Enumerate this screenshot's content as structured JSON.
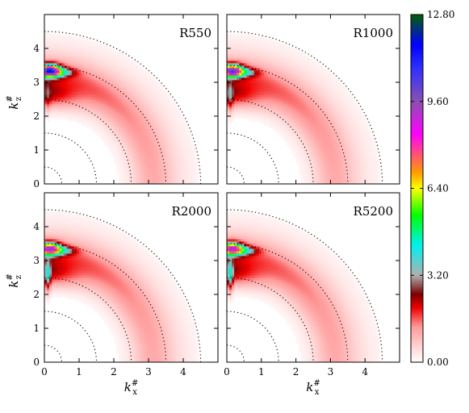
{
  "chart_data": [
    {
      "type": "heatmap",
      "title": "R550",
      "xlabel": "",
      "ylabel": "k_z^#",
      "xlim": [
        0,
        5
      ],
      "ylim": [
        0,
        5
      ],
      "xticks": [],
      "yticks": [
        "0",
        "1",
        "2",
        "3",
        "4"
      ],
      "peak": {
        "kx": 0.15,
        "kz": 3.35,
        "value": 12.3
      },
      "dotted_circle_radii": [
        0.5,
        1.5,
        2.5,
        3.5,
        4.5
      ]
    },
    {
      "type": "heatmap",
      "title": "R1000",
      "xlabel": "",
      "ylabel": "",
      "xlim": [
        0,
        5
      ],
      "ylim": [
        0,
        5
      ],
      "xticks": [],
      "yticks": [],
      "peak": {
        "kx": 0.15,
        "kz": 3.35,
        "value": 11.0
      },
      "dotted_circle_radii": [
        0.5,
        1.5,
        2.5,
        3.5,
        4.5
      ]
    },
    {
      "type": "heatmap",
      "title": "R2000",
      "xlabel": "k_x^#",
      "ylabel": "k_z^#",
      "xlim": [
        0,
        5
      ],
      "ylim": [
        0,
        5
      ],
      "xticks": [
        "0",
        "1",
        "2",
        "3",
        "4"
      ],
      "yticks": [
        "0",
        "1",
        "2",
        "3",
        "4"
      ],
      "peak": {
        "kx": 0.15,
        "kz": 3.35,
        "value": 10.0
      },
      "dotted_circle_radii": [
        0.5,
        1.5,
        2.5,
        3.5,
        4.5
      ]
    },
    {
      "type": "heatmap",
      "title": "R5200",
      "xlabel": "k_x^#",
      "ylabel": "",
      "xlim": [
        0,
        5
      ],
      "ylim": [
        0,
        5
      ],
      "xticks": [
        "0",
        "1",
        "2",
        "3",
        "4"
      ],
      "yticks": [],
      "peak": {
        "kx": 0.15,
        "kz": 3.35,
        "value": 9.8
      },
      "dotted_circle_radii": [
        0.5,
        1.5,
        2.5,
        3.5,
        4.5
      ]
    }
  ],
  "colorbar": {
    "min": 0,
    "max": 12.8,
    "tick_labels": [
      "0.00",
      "3.20",
      "6.40",
      "9.60",
      "12.80"
    ],
    "stops": [
      {
        "v": 0.0,
        "color": "#ffffff"
      },
      {
        "v": 1.3,
        "color": "#ff9a9a"
      },
      {
        "v": 2.0,
        "color": "#f00000"
      },
      {
        "v": 2.5,
        "color": "#7a0000"
      },
      {
        "v": 3.2,
        "color": "#b0b0b0"
      },
      {
        "v": 4.3,
        "color": "#00f0f0"
      },
      {
        "v": 5.4,
        "color": "#00ff00"
      },
      {
        "v": 6.4,
        "color": "#ffff00"
      },
      {
        "v": 7.0,
        "color": "#ff9a00"
      },
      {
        "v": 8.4,
        "color": "#ff00ff"
      },
      {
        "v": 9.6,
        "color": "#8a50b0"
      },
      {
        "v": 10.8,
        "color": "#3030ff"
      },
      {
        "v": 11.7,
        "color": "#0000ff"
      },
      {
        "v": 12.8,
        "color": "#006000"
      }
    ]
  }
}
